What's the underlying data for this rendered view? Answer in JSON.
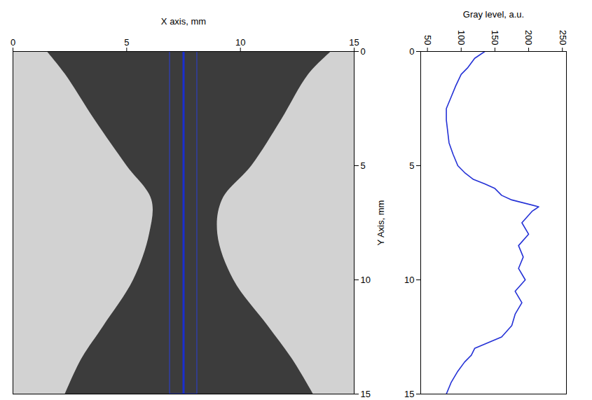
{
  "chart_data": [
    {
      "type": "image",
      "xlabel": "X axis, mm",
      "ylabel": "Y Axis, mm",
      "xlim": [
        0,
        15
      ],
      "xticks": [
        0,
        5,
        10,
        15
      ],
      "ylim": [
        0,
        15
      ],
      "yticks": [
        0,
        5,
        10,
        15
      ],
      "color": "#d2d2d2",
      "dark_region": {
        "y": [
          0,
          1,
          3,
          5,
          6.5,
          8,
          10,
          12,
          13.5,
          15
        ],
        "left": [
          1.5,
          2.3,
          3.6,
          5.0,
          6.1,
          6.0,
          5.3,
          4.0,
          3.0,
          2.3
        ],
        "right": [
          14.0,
          13.0,
          11.8,
          10.5,
          9.2,
          9.0,
          9.7,
          11.2,
          12.3,
          13.2
        ],
        "color": "#3c3c3c"
      },
      "band": {
        "x": [
          6.9,
          8.1
        ],
        "color": "#2b3fd8"
      },
      "line": {
        "x": 7.5,
        "color": "#1a2fd0"
      }
    },
    {
      "type": "line",
      "xlabel": "Gray level, a.u.",
      "xlim": [
        40,
        256
      ],
      "xticks": [
        50,
        100,
        150,
        200,
        250
      ],
      "ylim": [
        0,
        15
      ],
      "yticks": [
        0,
        5,
        10,
        15
      ],
      "color": "#2431d6",
      "y": [
        0,
        0.3,
        0.7,
        1,
        1.5,
        2,
        2.5,
        3,
        3.5,
        4,
        4.5,
        5,
        5.3,
        5.6,
        5.8,
        6,
        6.3,
        6.5,
        6.8,
        7,
        7.5,
        8,
        8.5,
        9,
        9.5,
        10,
        10.5,
        11,
        11.5,
        12,
        12.5,
        13,
        13.3,
        13.6,
        14,
        14.5,
        15
      ],
      "x": [
        135,
        120,
        110,
        100,
        92,
        85,
        78,
        78,
        80,
        82,
        88,
        95,
        105,
        118,
        135,
        150,
        160,
        175,
        215,
        205,
        190,
        200,
        185,
        192,
        185,
        195,
        180,
        190,
        180,
        175,
        160,
        120,
        115,
        105,
        95,
        85,
        78
      ]
    }
  ]
}
